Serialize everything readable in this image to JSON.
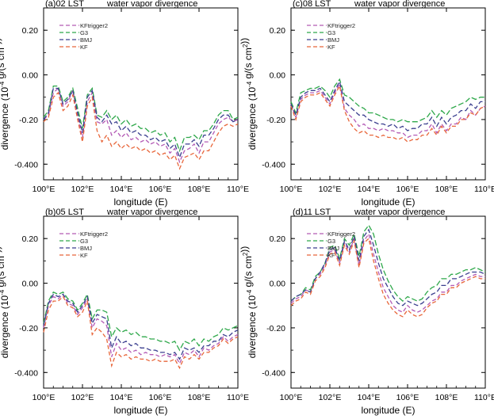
{
  "figure": {
    "xlabel": "longitude (E)",
    "ylabel_main": "divergence (10",
    "ylabel_exp": "-4",
    "ylabel_tail": " g/(s cm",
    "ylabel_exp2": "2",
    "ylabel_end": "))"
  },
  "colors": {
    "KFtrigger2": "#b35ab5",
    "G3": "#2ea84a",
    "BMJ": "#3b3f8f",
    "KF": "#e8663a"
  },
  "chart_data": [
    {
      "type": "line",
      "panel_label": "(a)02 LST",
      "title": "water vapor divergence",
      "xlabel": "longitude (E)",
      "ylabel": "divergence (10-4 g/(s cm2))",
      "xlim": [
        100,
        110
      ],
      "ylim": [
        -0.47,
        0.3
      ],
      "x_ticks": [
        "100°E",
        "102°E",
        "104°E",
        "106°E",
        "108°E",
        "110°E"
      ],
      "y_ticks": [
        "0.20",
        "0.00",
        "-0.20",
        "-0.400"
      ],
      "y_tick_values": [
        0.2,
        0.0,
        -0.2,
        -0.4
      ],
      "legend": [
        "KFtrigger2",
        "G3",
        "BMJ",
        "KF"
      ],
      "x": [
        100.0,
        100.25,
        100.5,
        100.75,
        101.0,
        101.25,
        101.5,
        101.75,
        102.0,
        102.25,
        102.5,
        102.75,
        103.0,
        103.25,
        103.5,
        103.75,
        104.0,
        104.25,
        104.5,
        104.75,
        105.0,
        105.25,
        105.5,
        105.75,
        106.0,
        106.25,
        106.5,
        106.75,
        107.0,
        107.25,
        107.5,
        107.75,
        108.0,
        108.25,
        108.5,
        108.75,
        109.0,
        109.25,
        109.5,
        109.75,
        110.0
      ],
      "series": [
        {
          "name": "KFtrigger2",
          "values": [
            -0.2,
            -0.18,
            -0.08,
            -0.06,
            -0.14,
            -0.12,
            -0.07,
            -0.18,
            -0.28,
            -0.12,
            -0.08,
            -0.21,
            -0.22,
            -0.2,
            -0.27,
            -0.25,
            -0.28,
            -0.26,
            -0.29,
            -0.28,
            -0.3,
            -0.29,
            -0.31,
            -0.3,
            -0.32,
            -0.31,
            -0.35,
            -0.33,
            -0.39,
            -0.34,
            -0.33,
            -0.31,
            -0.35,
            -0.3,
            -0.3,
            -0.26,
            -0.22,
            -0.2,
            -0.19,
            -0.21,
            -0.2
          ]
        },
        {
          "name": "G3",
          "values": [
            -0.19,
            -0.16,
            -0.05,
            -0.05,
            -0.12,
            -0.1,
            -0.06,
            -0.15,
            -0.24,
            -0.09,
            -0.06,
            -0.18,
            -0.19,
            -0.16,
            -0.2,
            -0.18,
            -0.22,
            -0.2,
            -0.23,
            -0.22,
            -0.24,
            -0.24,
            -0.26,
            -0.25,
            -0.27,
            -0.26,
            -0.3,
            -0.28,
            -0.34,
            -0.28,
            -0.28,
            -0.27,
            -0.29,
            -0.25,
            -0.25,
            -0.22,
            -0.18,
            -0.16,
            -0.16,
            -0.2,
            -0.19
          ]
        },
        {
          "name": "BMJ",
          "values": [
            -0.2,
            -0.17,
            -0.06,
            -0.06,
            -0.13,
            -0.11,
            -0.07,
            -0.17,
            -0.26,
            -0.1,
            -0.07,
            -0.19,
            -0.21,
            -0.18,
            -0.22,
            -0.21,
            -0.25,
            -0.23,
            -0.26,
            -0.25,
            -0.27,
            -0.27,
            -0.29,
            -0.28,
            -0.3,
            -0.29,
            -0.33,
            -0.31,
            -0.37,
            -0.31,
            -0.31,
            -0.29,
            -0.32,
            -0.27,
            -0.27,
            -0.24,
            -0.2,
            -0.18,
            -0.18,
            -0.21,
            -0.2
          ]
        },
        {
          "name": "KF",
          "values": [
            -0.21,
            -0.19,
            -0.1,
            -0.08,
            -0.16,
            -0.14,
            -0.09,
            -0.2,
            -0.3,
            -0.14,
            -0.1,
            -0.25,
            -0.3,
            -0.27,
            -0.32,
            -0.3,
            -0.33,
            -0.31,
            -0.33,
            -0.32,
            -0.34,
            -0.33,
            -0.35,
            -0.34,
            -0.36,
            -0.35,
            -0.38,
            -0.36,
            -0.42,
            -0.37,
            -0.36,
            -0.35,
            -0.38,
            -0.34,
            -0.34,
            -0.3,
            -0.26,
            -0.23,
            -0.22,
            -0.23,
            -0.22
          ]
        }
      ]
    },
    {
      "type": "line",
      "panel_label": "(c)08 LST",
      "title": "water vapor divergence",
      "xlabel": "longitude (E)",
      "ylabel": "divergence (10-4 g/(s cm2))",
      "xlim": [
        100,
        110
      ],
      "ylim": [
        -0.47,
        0.3
      ],
      "x_ticks": [
        "100°E",
        "102°E",
        "104°E",
        "106°E",
        "108°E",
        "110°E"
      ],
      "y_ticks": [
        "0.20",
        "0.00",
        "-0.20",
        "-0.400"
      ],
      "y_tick_values": [
        0.2,
        0.0,
        -0.2,
        -0.4
      ],
      "legend": [
        "KFtrigger2",
        "G3",
        "BMJ",
        "KF"
      ],
      "x": [
        100.0,
        100.25,
        100.5,
        100.75,
        101.0,
        101.25,
        101.5,
        101.75,
        102.0,
        102.25,
        102.5,
        102.75,
        103.0,
        103.25,
        103.5,
        103.75,
        104.0,
        104.25,
        104.5,
        104.75,
        105.0,
        105.25,
        105.5,
        105.75,
        106.0,
        106.25,
        106.5,
        106.75,
        107.0,
        107.25,
        107.5,
        107.75,
        108.0,
        108.25,
        108.5,
        108.75,
        109.0,
        109.25,
        109.5,
        109.75,
        110.0
      ],
      "series": [
        {
          "name": "KFtrigger2",
          "values": [
            -0.13,
            -0.19,
            -0.11,
            -0.09,
            -0.08,
            -0.08,
            -0.07,
            -0.1,
            -0.13,
            -0.08,
            -0.04,
            -0.15,
            -0.18,
            -0.2,
            -0.23,
            -0.22,
            -0.24,
            -0.24,
            -0.25,
            -0.24,
            -0.25,
            -0.25,
            -0.26,
            -0.26,
            -0.28,
            -0.27,
            -0.27,
            -0.25,
            -0.25,
            -0.22,
            -0.26,
            -0.22,
            -0.25,
            -0.22,
            -0.22,
            -0.19,
            -0.2,
            -0.16,
            -0.18,
            -0.15,
            -0.14
          ]
        },
        {
          "name": "G3",
          "values": [
            -0.12,
            -0.17,
            -0.08,
            -0.07,
            -0.06,
            -0.06,
            -0.05,
            -0.07,
            -0.1,
            -0.05,
            -0.02,
            -0.09,
            -0.1,
            -0.12,
            -0.14,
            -0.15,
            -0.17,
            -0.17,
            -0.18,
            -0.19,
            -0.2,
            -0.2,
            -0.21,
            -0.2,
            -0.21,
            -0.21,
            -0.21,
            -0.2,
            -0.19,
            -0.16,
            -0.19,
            -0.16,
            -0.18,
            -0.15,
            -0.14,
            -0.13,
            -0.12,
            -0.1,
            -0.11,
            -0.1,
            -0.1
          ]
        },
        {
          "name": "BMJ",
          "values": [
            -0.13,
            -0.18,
            -0.1,
            -0.08,
            -0.07,
            -0.07,
            -0.06,
            -0.09,
            -0.12,
            -0.07,
            -0.03,
            -0.12,
            -0.14,
            -0.16,
            -0.18,
            -0.18,
            -0.2,
            -0.21,
            -0.22,
            -0.22,
            -0.23,
            -0.22,
            -0.24,
            -0.23,
            -0.25,
            -0.24,
            -0.24,
            -0.22,
            -0.22,
            -0.19,
            -0.23,
            -0.19,
            -0.22,
            -0.19,
            -0.18,
            -0.16,
            -0.16,
            -0.13,
            -0.15,
            -0.12,
            -0.12
          ]
        },
        {
          "name": "KF",
          "values": [
            -0.14,
            -0.2,
            -0.12,
            -0.1,
            -0.09,
            -0.09,
            -0.08,
            -0.11,
            -0.14,
            -0.09,
            -0.05,
            -0.16,
            -0.21,
            -0.24,
            -0.26,
            -0.25,
            -0.27,
            -0.27,
            -0.28,
            -0.27,
            -0.28,
            -0.28,
            -0.29,
            -0.28,
            -0.3,
            -0.29,
            -0.29,
            -0.27,
            -0.27,
            -0.24,
            -0.27,
            -0.23,
            -0.26,
            -0.23,
            -0.23,
            -0.2,
            -0.2,
            -0.17,
            -0.18,
            -0.15,
            -0.14
          ]
        }
      ]
    },
    {
      "type": "line",
      "panel_label": "(b)05 LST",
      "title": "water vapor divergence",
      "xlabel": "longitude (E)",
      "ylabel": "divergence (10-4 g/(s cm2))",
      "xlim": [
        100,
        110
      ],
      "ylim": [
        -0.47,
        0.3
      ],
      "x_ticks": [
        "100°E",
        "102°E",
        "104°E",
        "106°E",
        "108°E",
        "110°E"
      ],
      "y_ticks": [
        "0.20",
        "0.00",
        "-0.20",
        "-0.400"
      ],
      "y_tick_values": [
        0.2,
        0.0,
        -0.2,
        -0.4
      ],
      "legend": [
        "KFtrigger2",
        "G3",
        "BMJ",
        "KF"
      ],
      "x": [
        100.0,
        100.25,
        100.5,
        100.75,
        101.0,
        101.25,
        101.5,
        101.75,
        102.0,
        102.25,
        102.5,
        102.75,
        103.0,
        103.25,
        103.5,
        103.75,
        104.0,
        104.25,
        104.5,
        104.75,
        105.0,
        105.25,
        105.5,
        105.75,
        106.0,
        106.25,
        106.5,
        106.75,
        107.0,
        107.25,
        107.5,
        107.75,
        108.0,
        108.25,
        108.5,
        108.75,
        109.0,
        109.25,
        109.5,
        109.75,
        110.0
      ],
      "series": [
        {
          "name": "KFtrigger2",
          "values": [
            -0.2,
            -0.1,
            -0.06,
            -0.07,
            -0.05,
            -0.09,
            -0.1,
            -0.14,
            -0.11,
            -0.07,
            -0.2,
            -0.16,
            -0.17,
            -0.19,
            -0.33,
            -0.27,
            -0.3,
            -0.29,
            -0.31,
            -0.3,
            -0.32,
            -0.31,
            -0.32,
            -0.32,
            -0.33,
            -0.32,
            -0.33,
            -0.32,
            -0.36,
            -0.31,
            -0.32,
            -0.3,
            -0.33,
            -0.29,
            -0.3,
            -0.28,
            -0.27,
            -0.24,
            -0.26,
            -0.24,
            -0.23
          ]
        },
        {
          "name": "G3",
          "values": [
            -0.18,
            -0.08,
            -0.04,
            -0.05,
            -0.04,
            -0.07,
            -0.08,
            -0.12,
            -0.09,
            -0.05,
            -0.16,
            -0.12,
            -0.12,
            -0.13,
            -0.24,
            -0.2,
            -0.22,
            -0.21,
            -0.23,
            -0.22,
            -0.24,
            -0.24,
            -0.25,
            -0.25,
            -0.26,
            -0.26,
            -0.27,
            -0.26,
            -0.3,
            -0.26,
            -0.27,
            -0.25,
            -0.28,
            -0.25,
            -0.26,
            -0.24,
            -0.23,
            -0.2,
            -0.21,
            -0.2,
            -0.19
          ]
        },
        {
          "name": "BMJ",
          "values": [
            -0.19,
            -0.09,
            -0.05,
            -0.06,
            -0.05,
            -0.08,
            -0.09,
            -0.13,
            -0.1,
            -0.06,
            -0.18,
            -0.14,
            -0.15,
            -0.16,
            -0.29,
            -0.24,
            -0.27,
            -0.26,
            -0.28,
            -0.27,
            -0.29,
            -0.29,
            -0.3,
            -0.3,
            -0.31,
            -0.31,
            -0.32,
            -0.31,
            -0.34,
            -0.29,
            -0.3,
            -0.29,
            -0.31,
            -0.28,
            -0.28,
            -0.26,
            -0.26,
            -0.23,
            -0.24,
            -0.22,
            -0.21
          ]
        },
        {
          "name": "KF",
          "values": [
            -0.22,
            -0.12,
            -0.08,
            -0.08,
            -0.06,
            -0.1,
            -0.11,
            -0.15,
            -0.13,
            -0.08,
            -0.23,
            -0.2,
            -0.22,
            -0.25,
            -0.37,
            -0.31,
            -0.33,
            -0.32,
            -0.34,
            -0.33,
            -0.34,
            -0.34,
            -0.35,
            -0.34,
            -0.35,
            -0.35,
            -0.35,
            -0.34,
            -0.38,
            -0.33,
            -0.34,
            -0.32,
            -0.34,
            -0.31,
            -0.31,
            -0.29,
            -0.28,
            -0.25,
            -0.27,
            -0.25,
            -0.24
          ]
        }
      ]
    },
    {
      "type": "line",
      "panel_label": "(d)11 LST",
      "title": "water vapor divergence",
      "xlabel": "longitude (E)",
      "ylabel": "divergence (10-4 g/(s cm2))",
      "xlim": [
        100,
        110
      ],
      "ylim": [
        -0.47,
        0.3
      ],
      "x_ticks": [
        "100°E",
        "102°E",
        "104°E",
        "106°E",
        "108°E",
        "110°E"
      ],
      "y_ticks": [
        "0.20",
        "0.00",
        "-0.20",
        "-0.400"
      ],
      "y_tick_values": [
        0.2,
        0.0,
        -0.2,
        -0.4
      ],
      "legend": [
        "KFtrigger2",
        "G3",
        "BMJ",
        "KF"
      ],
      "x": [
        100.0,
        100.25,
        100.5,
        100.75,
        101.0,
        101.25,
        101.5,
        101.75,
        102.0,
        102.25,
        102.5,
        102.75,
        103.0,
        103.25,
        103.5,
        103.75,
        104.0,
        104.25,
        104.5,
        104.75,
        105.0,
        105.25,
        105.5,
        105.75,
        106.0,
        106.25,
        106.5,
        106.75,
        107.0,
        107.25,
        107.5,
        107.75,
        108.0,
        108.25,
        108.5,
        108.75,
        109.0,
        109.25,
        109.5,
        109.75,
        110.0
      ],
      "series": [
        {
          "name": "KFtrigger2",
          "values": [
            -0.09,
            -0.07,
            -0.06,
            -0.03,
            -0.04,
            0.02,
            0.04,
            0.08,
            0.14,
            0.15,
            0.09,
            0.18,
            0.14,
            0.2,
            0.08,
            0.19,
            0.22,
            0.13,
            0.05,
            -0.02,
            -0.06,
            -0.1,
            -0.12,
            -0.13,
            -0.1,
            -0.12,
            -0.13,
            -0.12,
            -0.1,
            -0.08,
            -0.07,
            -0.04,
            -0.04,
            -0.01,
            -0.01,
            0.01,
            0.02,
            0.03,
            0.04,
            0.03,
            0.03
          ]
        },
        {
          "name": "G3",
          "values": [
            -0.08,
            -0.06,
            -0.05,
            -0.02,
            -0.03,
            0.03,
            0.05,
            0.09,
            0.16,
            0.17,
            0.11,
            0.2,
            0.17,
            0.22,
            0.12,
            0.23,
            0.26,
            0.22,
            0.13,
            0.06,
            0.01,
            -0.03,
            -0.06,
            -0.08,
            -0.06,
            -0.07,
            -0.08,
            -0.07,
            -0.04,
            -0.02,
            -0.01,
            0.02,
            0.02,
            0.04,
            0.04,
            0.05,
            0.06,
            0.06,
            0.07,
            0.06,
            0.05
          ]
        },
        {
          "name": "BMJ",
          "values": [
            -0.08,
            -0.06,
            -0.05,
            -0.03,
            -0.04,
            0.02,
            0.05,
            0.09,
            0.15,
            0.16,
            0.1,
            0.19,
            0.15,
            0.21,
            0.1,
            0.21,
            0.24,
            0.17,
            0.09,
            0.02,
            -0.02,
            -0.06,
            -0.09,
            -0.1,
            -0.08,
            -0.09,
            -0.1,
            -0.09,
            -0.07,
            -0.05,
            -0.04,
            -0.01,
            -0.01,
            0.02,
            0.02,
            0.03,
            0.04,
            0.05,
            0.05,
            0.05,
            0.04
          ]
        },
        {
          "name": "KF",
          "values": [
            -0.1,
            -0.08,
            -0.07,
            -0.04,
            -0.05,
            0.01,
            0.03,
            0.07,
            0.13,
            0.14,
            0.08,
            0.17,
            0.13,
            0.19,
            0.07,
            0.18,
            0.2,
            0.1,
            0.02,
            -0.05,
            -0.09,
            -0.12,
            -0.14,
            -0.15,
            -0.12,
            -0.14,
            -0.15,
            -0.14,
            -0.11,
            -0.09,
            -0.08,
            -0.05,
            -0.05,
            -0.02,
            -0.02,
            0.0,
            0.01,
            0.02,
            0.03,
            0.02,
            0.02
          ]
        }
      ]
    }
  ]
}
